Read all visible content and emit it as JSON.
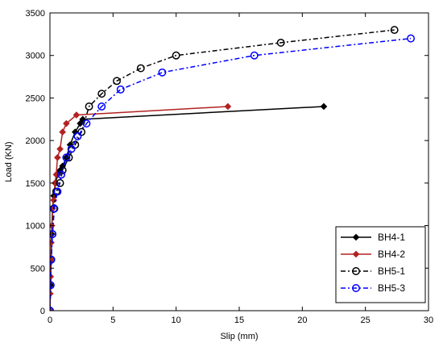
{
  "chart_data": {
    "type": "line",
    "title": "",
    "xlabel": "Slip (mm)",
    "ylabel": "Load (KN)",
    "xlim": [
      0,
      30
    ],
    "ylim": [
      0,
      3500
    ],
    "xticks": [
      0,
      5,
      10,
      15,
      20,
      25,
      30
    ],
    "yticks": [
      0,
      500,
      1000,
      1500,
      2000,
      2500,
      3000,
      3500
    ],
    "grid": false,
    "legend_position": "bottom-right",
    "series": [
      {
        "name": "BH4-1",
        "color": "#000000",
        "line_style": "solid",
        "marker": "diamond",
        "x": [
          0.0,
          0.05,
          0.1,
          0.15,
          0.2,
          0.3,
          0.45,
          0.6,
          0.8,
          1.0,
          1.3,
          1.6,
          2.0,
          2.4,
          2.6,
          21.7
        ],
        "y": [
          0,
          300,
          600,
          900,
          1200,
          1350,
          1500,
          1600,
          1650,
          1700,
          1800,
          1950,
          2100,
          2200,
          2250,
          2400
        ]
      },
      {
        "name": "BH4-2",
        "color": "#b22222",
        "line_style": "solid",
        "marker": "diamond",
        "x": [
          0.0,
          0.02,
          0.05,
          0.08,
          0.1,
          0.15,
          0.2,
          0.3,
          0.4,
          0.5,
          0.6,
          0.8,
          1.0,
          1.3,
          2.1,
          14.1
        ],
        "y": [
          0,
          200,
          400,
          600,
          800,
          1000,
          1200,
          1300,
          1500,
          1600,
          1800,
          1900,
          2100,
          2200,
          2300,
          2400
        ]
      },
      {
        "name": "BH5-1",
        "color": "#000000",
        "line_style": "dashdot",
        "marker": "circle",
        "x": [
          0.0,
          0.05,
          0.1,
          0.2,
          0.3,
          0.5,
          0.8,
          1.0,
          1.5,
          2.0,
          2.5,
          3.1,
          4.1,
          5.3,
          7.2,
          10.0,
          18.3,
          27.3
        ],
        "y": [
          0,
          300,
          600,
          900,
          1200,
          1400,
          1500,
          1650,
          1800,
          1950,
          2100,
          2400,
          2550,
          2700,
          2850,
          3000,
          3150,
          3300
        ]
      },
      {
        "name": "BH5-3",
        "color": "#0000ff",
        "line_style": "dashdot",
        "marker": "circle",
        "x": [
          0.0,
          0.05,
          0.1,
          0.2,
          0.35,
          0.6,
          0.9,
          1.3,
          1.7,
          2.2,
          2.9,
          4.1,
          5.6,
          8.9,
          16.2,
          28.6
        ],
        "y": [
          0,
          300,
          600,
          900,
          1200,
          1400,
          1600,
          1800,
          1900,
          2050,
          2200,
          2400,
          2600,
          2800,
          3000,
          3200
        ]
      }
    ]
  }
}
